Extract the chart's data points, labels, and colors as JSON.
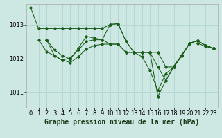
{
  "background_color": "#cde8e2",
  "grid_color": "#b0d4ce",
  "line_color": "#1a5c1a",
  "marker_color": "#1a5c1a",
  "xlabel": "Graphe pression niveau de la mer (hPa)",
  "xlabel_fontsize": 7,
  "tick_fontsize": 6,
  "ylabel_ticks": [
    1011,
    1012,
    1013
  ],
  "xlim": [
    -0.5,
    23.5
  ],
  "ylim": [
    1010.55,
    1013.6
  ],
  "series": [
    {
      "x": [
        0,
        1,
        2,
        3,
        4,
        5,
        6,
        7,
        8,
        9,
        10,
        11,
        12,
        13,
        14,
        15,
        16,
        17,
        18,
        19,
        20,
        21,
        22,
        23
      ],
      "y": [
        1013.5,
        1012.88,
        1012.88,
        1012.88,
        1012.88,
        1012.88,
        1012.88,
        1012.88,
        1012.88,
        1012.88,
        1013.0,
        1013.02,
        1012.5,
        1012.18,
        1012.18,
        1012.18,
        1010.88,
        1011.35,
        1011.75,
        1012.1,
        1012.45,
        1012.45,
        1012.35,
        1012.3
      ]
    },
    {
      "x": [
        1,
        2,
        3,
        4,
        5,
        6,
        7,
        8,
        9,
        10,
        11,
        12,
        13,
        14,
        15,
        16,
        17,
        18,
        19,
        20,
        21,
        22,
        23
      ],
      "y": [
        1012.55,
        1012.2,
        1012.08,
        1011.95,
        1011.88,
        1012.05,
        1012.28,
        1012.38,
        1012.42,
        1012.42,
        1012.42,
        1012.18,
        1012.18,
        1012.18,
        1012.18,
        1011.75,
        1011.35,
        1011.78,
        1012.1,
        1012.45,
        1012.52,
        1012.38,
        1012.3
      ]
    },
    {
      "x": [
        2,
        3,
        4,
        5,
        6,
        7,
        8,
        9,
        10,
        11,
        12,
        13,
        14,
        15,
        16,
        17,
        18,
        19,
        20,
        21,
        22,
        23
      ],
      "y": [
        1012.55,
        1012.08,
        1011.95,
        1012.02,
        1012.25,
        1012.5,
        1012.55,
        1012.55,
        1012.42,
        1012.42,
        1012.18,
        1012.18,
        1012.18,
        1012.18,
        1012.18,
        1011.75,
        1011.75,
        1012.08,
        1012.45,
        1012.52,
        1012.38,
        1012.3
      ]
    },
    {
      "x": [
        2,
        3,
        4,
        5,
        6,
        7,
        8,
        9,
        10,
        11,
        12,
        13,
        14,
        15,
        16,
        17,
        18,
        19,
        20,
        21,
        22,
        23
      ],
      "y": [
        1012.55,
        1012.25,
        1012.08,
        1011.98,
        1012.3,
        1012.65,
        1012.6,
        1012.55,
        1013.0,
        1013.02,
        1012.5,
        1012.18,
        1012.05,
        1011.65,
        1011.05,
        1011.55,
        1011.75,
        1012.08,
        1012.45,
        1012.52,
        1012.38,
        1012.3
      ]
    }
  ]
}
